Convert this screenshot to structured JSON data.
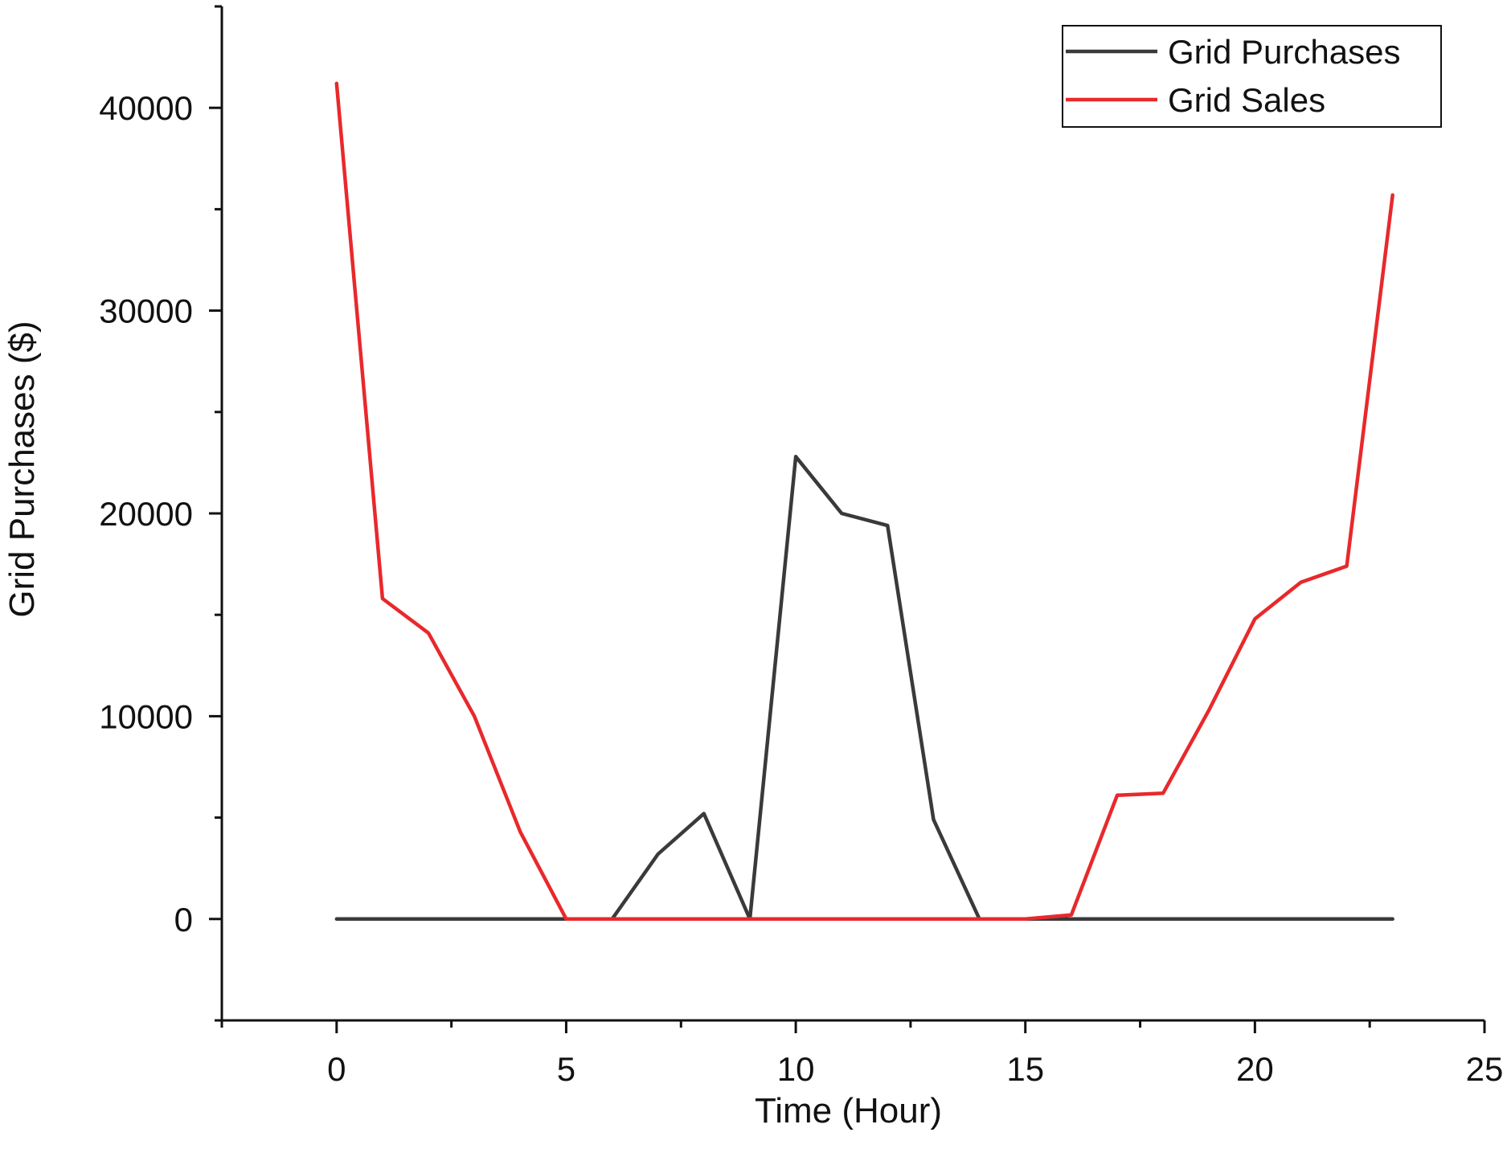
{
  "chart_data": {
    "type": "line",
    "title": "",
    "xlabel": "Time (Hour)",
    "ylabel": "Grid Purchases ($)",
    "xlim": [
      -2.5,
      25
    ],
    "ylim": [
      -5000,
      45000
    ],
    "xticks": [
      0,
      5,
      10,
      15,
      20,
      25
    ],
    "xtick_labels": [
      "0",
      "5",
      "10",
      "15",
      "20",
      "25"
    ],
    "yticks": [
      0,
      10000,
      20000,
      30000,
      40000
    ],
    "ytick_labels": [
      "0",
      "10000",
      "20000",
      "30000",
      "40000"
    ],
    "grid": false,
    "legend_position": "top-right",
    "x": [
      0,
      1,
      2,
      3,
      4,
      5,
      6,
      7,
      8,
      9,
      10,
      11,
      12,
      13,
      14,
      15,
      16,
      17,
      18,
      19,
      20,
      21,
      22,
      23
    ],
    "series": [
      {
        "name": "Grid Purchases",
        "color": "#3a3a3a",
        "values": [
          0,
          0,
          0,
          0,
          0,
          0,
          0,
          3200,
          5200,
          0,
          22800,
          20000,
          19400,
          4900,
          0,
          0,
          0,
          0,
          0,
          0,
          0,
          0,
          0,
          0
        ]
      },
      {
        "name": "Grid Sales",
        "color": "#e8292c",
        "values": [
          41200,
          15800,
          14100,
          10000,
          4300,
          0,
          0,
          0,
          0,
          0,
          0,
          0,
          0,
          0,
          0,
          0,
          200,
          6100,
          6200,
          10300,
          14800,
          16600,
          17400,
          35700
        ]
      }
    ]
  }
}
